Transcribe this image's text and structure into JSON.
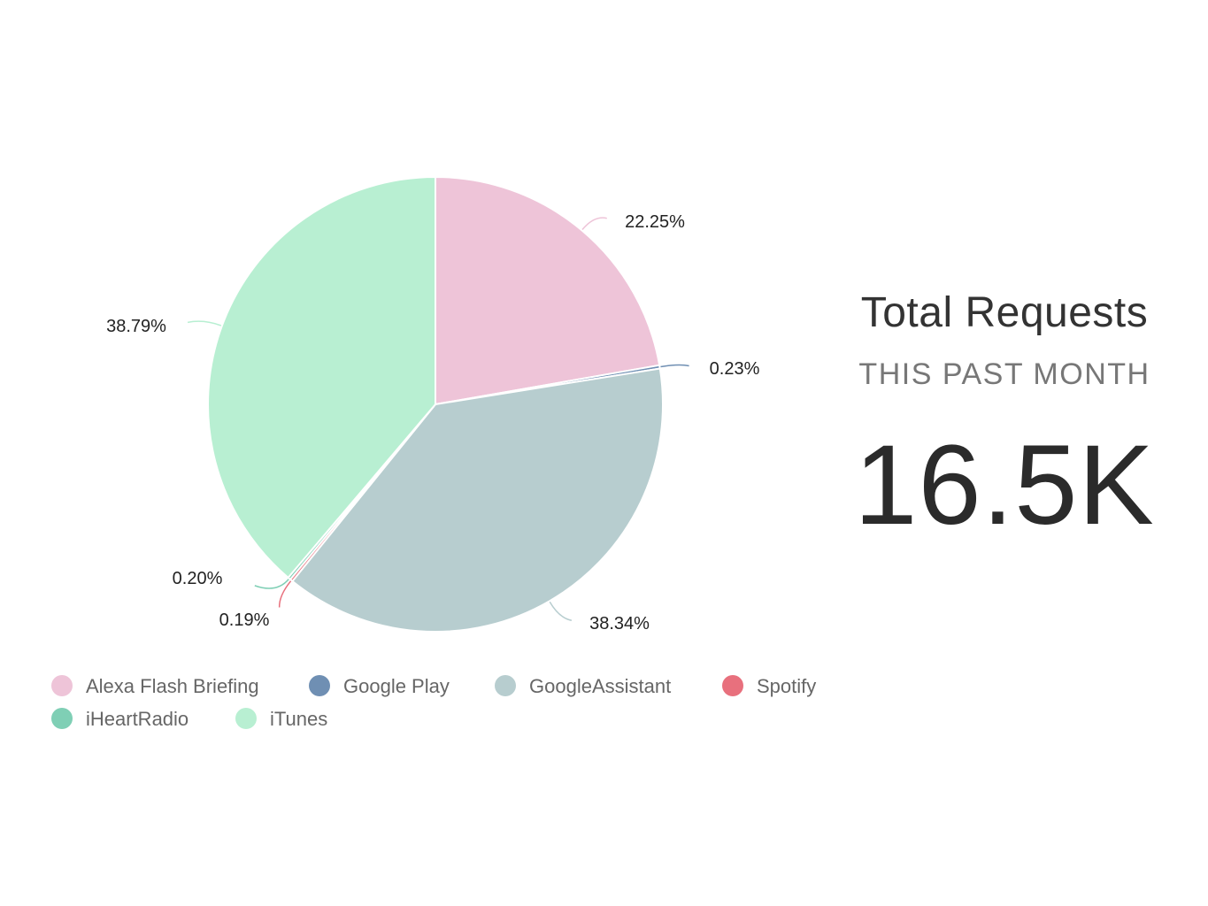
{
  "chart_data": {
    "type": "pie",
    "categories": [
      "Alexa Flash Briefing",
      "Google Play",
      "GoogleAssistant",
      "Spotify",
      "iHeartRadio",
      "iTunes"
    ],
    "values": [
      22.25,
      0.23,
      38.34,
      0.19,
      0.2,
      38.79
    ],
    "data_labels": [
      "22.25%",
      "0.23%",
      "38.34%",
      "0.19%",
      "0.20%",
      "38.79%"
    ],
    "colors": [
      "#eec4d8",
      "#6f8fb3",
      "#b7cdcf",
      "#e8707d",
      "#7fcfb5",
      "#b8efd2"
    ],
    "legend_position": "bottom-left"
  },
  "kpi": {
    "title": "Total Requests",
    "subtitle": "THIS PAST MONTH",
    "value": "16.5K"
  }
}
